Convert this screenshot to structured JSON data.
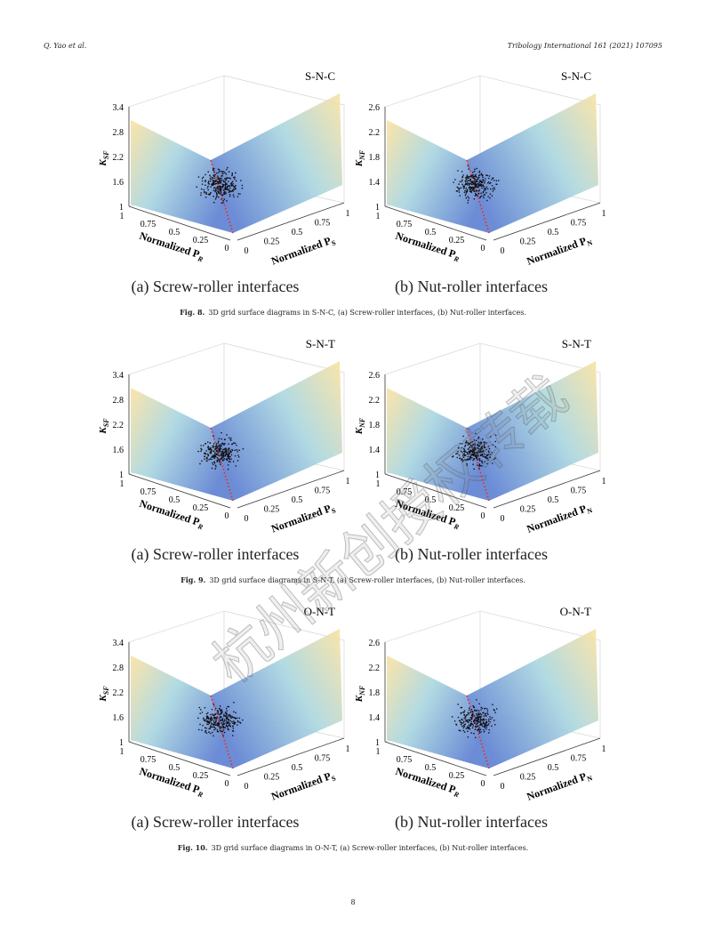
{
  "header": {
    "left": "Q. Yao et al.",
    "right": "Tribology International 161 (2021) 107095"
  },
  "watermark": "杭州新创授权转载",
  "figures": [
    {
      "label": "Fig. 8.",
      "caption": "3D grid surface diagrams in S-N-C, (a) Screw-roller interfaces, (b) Nut-roller interfaces.",
      "panels": [
        {
          "tag": "S-N-C",
          "subcaption": "(a) Screw-roller interfaces",
          "zlabel": {
            "main": "K",
            "sub": "SF"
          },
          "zticks": [
            "1",
            "1.6",
            "2.2",
            "2.8",
            "3.4"
          ],
          "xlabel": {
            "main": "Normalized P",
            "sub": "R"
          },
          "xticks": [
            "1",
            "0.75",
            "0.5",
            "0.25",
            "0"
          ],
          "ylabel": {
            "main": "Normalized P",
            "sub": "S"
          },
          "yticks": [
            "0",
            "0.25",
            "0.5",
            "0.75",
            "1"
          ]
        },
        {
          "tag": "S-N-C",
          "subcaption": "(b) Nut-roller interfaces",
          "zlabel": {
            "main": "K",
            "sub": "NF"
          },
          "zticks": [
            "1",
            "1.4",
            "1.8",
            "2.2",
            "2.6"
          ],
          "xlabel": {
            "main": "Normalized P",
            "sub": "R"
          },
          "xticks": [
            "1",
            "0.75",
            "0.5",
            "0.25",
            "0"
          ],
          "ylabel": {
            "main": "Normalized P",
            "sub": "N"
          },
          "yticks": [
            "0",
            "0.25",
            "0.5",
            "0.75",
            "1"
          ]
        }
      ]
    },
    {
      "label": "Fig. 9.",
      "caption": "3D grid surface diagrams in S-N-T, (a) Screw-roller interfaces, (b) Nut-roller interfaces.",
      "panels": [
        {
          "tag": "S-N-T",
          "subcaption": "(a) Screw-roller interfaces",
          "zlabel": {
            "main": "K",
            "sub": "SF"
          },
          "zticks": [
            "1",
            "1.6",
            "2.2",
            "2.8",
            "3.4"
          ],
          "xlabel": {
            "main": "Normalized P",
            "sub": "R"
          },
          "xticks": [
            "1",
            "0.75",
            "0.5",
            "0.25",
            "0"
          ],
          "ylabel": {
            "main": "Normalized P",
            "sub": "S"
          },
          "yticks": [
            "0",
            "0.25",
            "0.5",
            "0.75",
            "1"
          ]
        },
        {
          "tag": "S-N-T",
          "subcaption": "(b) Nut-roller interfaces",
          "zlabel": {
            "main": "K",
            "sub": "NF"
          },
          "zticks": [
            "1",
            "1.4",
            "1.8",
            "2.2",
            "2.6"
          ],
          "xlabel": {
            "main": "Normalized P",
            "sub": "R"
          },
          "xticks": [
            "1",
            "0.75",
            "0.5",
            "0.25",
            "0"
          ],
          "ylabel": {
            "main": "Normalized P",
            "sub": "N"
          },
          "yticks": [
            "0",
            "0.25",
            "0.5",
            "0.75",
            "1"
          ]
        }
      ]
    },
    {
      "label": "Fig. 10.",
      "caption": "3D grid surface diagrams in O-N-T, (a) Screw-roller interfaces, (b) Nut-roller interfaces.",
      "panels": [
        {
          "tag": "O-N-T",
          "subcaption": "(a) Screw-roller interfaces",
          "zlabel": {
            "main": "K",
            "sub": "SF"
          },
          "zticks": [
            "1",
            "1.6",
            "2.2",
            "2.8",
            "3.4"
          ],
          "xlabel": {
            "main": "Normalized P",
            "sub": "R"
          },
          "xticks": [
            "1",
            "0.75",
            "0.5",
            "0.25",
            "0"
          ],
          "ylabel": {
            "main": "Normalized P",
            "sub": "S"
          },
          "yticks": [
            "0",
            "0.25",
            "0.5",
            "0.75",
            "1"
          ]
        },
        {
          "tag": "O-N-T",
          "subcaption": "(b) Nut-roller interfaces",
          "zlabel": {
            "main": "K",
            "sub": "NF"
          },
          "zticks": [
            "1",
            "1.4",
            "1.8",
            "2.2",
            "2.6"
          ],
          "xlabel": {
            "main": "Normalized P",
            "sub": "R"
          },
          "xticks": [
            "1",
            "0.75",
            "0.5",
            "0.25",
            "0"
          ],
          "ylabel": {
            "main": "Normalized P",
            "sub": "N"
          },
          "yticks": [
            "0",
            "0.25",
            "0.5",
            "0.75",
            "1"
          ]
        }
      ]
    }
  ],
  "page_number": "8"
}
